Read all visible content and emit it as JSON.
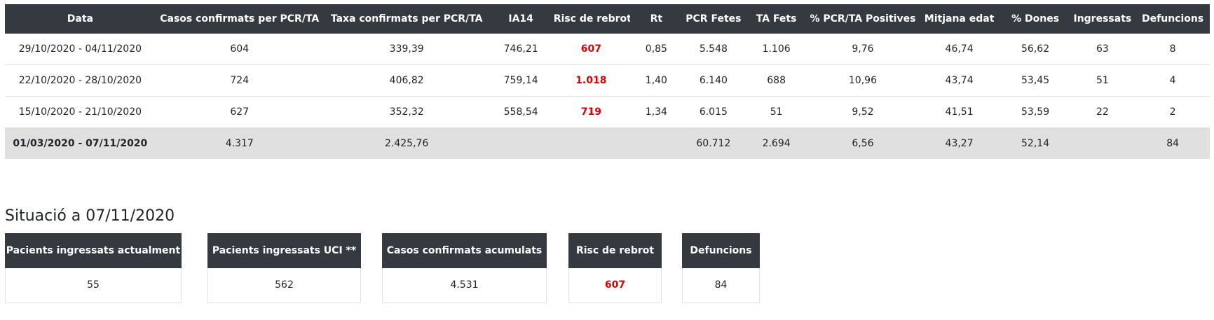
{
  "table": {
    "headers": [
      "Data",
      "Casos confirmats per PCR/TA",
      "Taxa confirmats per PCR/TA",
      "IA14",
      "Risc de rebrot",
      "Rt",
      "PCR Fetes",
      "TA Fets",
      "% PCR/TA Positives",
      "Mitjana edat",
      "% Dones",
      "Ingressats",
      "Defuncions"
    ],
    "rows": [
      [
        "29/10/2020 - 04/11/2020",
        "604",
        "339,39",
        "746,21",
        "607",
        "0,85",
        "5.548",
        "1.106",
        "9,76",
        "46,74",
        "56,62",
        "63",
        "8"
      ],
      [
        "22/10/2020 - 28/10/2020",
        "724",
        "406,82",
        "759,14",
        "1.018",
        "1,40",
        "6.140",
        "688",
        "10,96",
        "43,74",
        "53,45",
        "51",
        "4"
      ],
      [
        "15/10/2020 - 21/10/2020",
        "627",
        "352,32",
        "558,54",
        "719",
        "1,34",
        "6.015",
        "51",
        "9,52",
        "41,51",
        "53,59",
        "22",
        "2"
      ]
    ],
    "total": [
      "01/03/2020 - 07/11/2020",
      "4.317",
      "2.425,76",
      "",
      "",
      "",
      "60.712",
      "2.694",
      "6,56",
      "43,27",
      "52,14",
      "",
      "84"
    ]
  },
  "situation": {
    "title": "Situació a 07/11/2020",
    "cards": [
      {
        "label": "Pacients ingressats actualment",
        "value": "55"
      },
      {
        "label": "Pacients ingressats UCI **",
        "value": "562"
      },
      {
        "label": "Casos confirmats acumulats",
        "value": "4.531"
      },
      {
        "label": "Risc de rebrot",
        "value": "607"
      },
      {
        "label": "Defuncions",
        "value": "84"
      }
    ]
  },
  "colors": {
    "header_bg": "#343a40",
    "risk_red": "#e00000",
    "total_row_bg": "#e0e0e0"
  }
}
